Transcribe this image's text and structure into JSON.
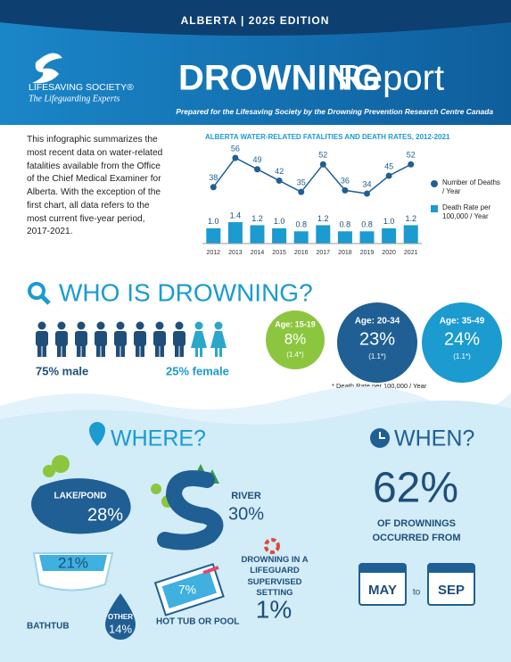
{
  "header": {
    "edition": "ALBERTA  |  2025 EDITION",
    "org": "LIFESAVING SOCIETY®",
    "tagline": "The Lifeguarding Experts",
    "title_bold": "DROWNING",
    "title_light": "Report",
    "subtitle": "Prepared for the Lifesaving Society by the Drowning Prevention Research Centre Canada"
  },
  "intro": "This infographic summarizes the most recent data on water-related fatalities available from the Office of the Chief Medical Examiner for Alberta. With the exception of the first chart, all data refers to the most current five-year period, 2017-2021.",
  "chart_data": {
    "type": "line-bar",
    "title": "ALBERTA WATER-RELATED FATALITIES AND DEATH RATES, 2012-2021",
    "categories": [
      "2012",
      "2013",
      "2014",
      "2015",
      "2016",
      "2017",
      "2018",
      "2019",
      "2020",
      "2021"
    ],
    "series": [
      {
        "name": "Number of Deaths / Year",
        "color": "#1f5f94",
        "values": [
          38,
          56,
          49,
          42,
          35,
          52,
          36,
          34,
          45,
          52
        ]
      },
      {
        "name": "Death Rate per 100,000 / Year",
        "color": "#1b9bd0",
        "values": [
          1.0,
          1.4,
          1.2,
          1.0,
          0.8,
          1.2,
          0.8,
          0.8,
          1.0,
          1.2
        ],
        "value_labels": [
          "1.0",
          "1.4",
          "1.2",
          "1.0",
          "0.8",
          "1.2",
          "0.8",
          "0.8",
          "1.0",
          "1.2"
        ]
      }
    ]
  },
  "who": {
    "heading": "WHO IS DROWNING?",
    "male": "75% male",
    "female": "25% female",
    "ages": [
      {
        "label": "Age: 15-19",
        "pct": "8%",
        "rate": "(1.4*)"
      },
      {
        "label": "Age: 20-34",
        "pct": "23%",
        "rate": "(1.1*)"
      },
      {
        "label": "Age: 35-49",
        "pct": "24%",
        "rate": "(1.1*)"
      }
    ],
    "note": "* Death Rate per 100,000 / Year"
  },
  "where": {
    "heading": "WHERE?",
    "items": [
      {
        "label": "LAKE/POND",
        "pct": "28%"
      },
      {
        "label": "RIVER",
        "pct": "30%"
      },
      {
        "label": "BATHTUB",
        "pct": "21%"
      },
      {
        "label": "HOT TUB OR POOL",
        "pct": "7%"
      },
      {
        "label": "OTHER",
        "pct": "14%"
      }
    ],
    "supervised": {
      "label": "DROWNING IN A LIFEGUARD SUPERVISED SETTING",
      "pct": "1%"
    }
  },
  "when": {
    "heading": "WHEN?",
    "pct": "62%",
    "text": "OF DROWNINGS OCCURRED FROM",
    "from": "MAY",
    "to": "to",
    "end": "SEP"
  }
}
